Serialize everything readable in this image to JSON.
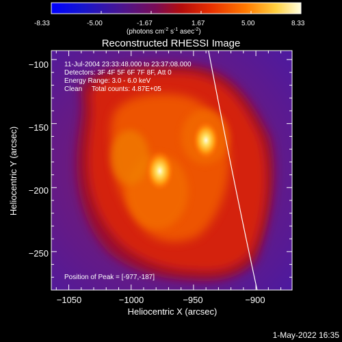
{
  "chart_data": {
    "type": "heatmap",
    "title": "Reconstructed RHESSI Image",
    "colorbar": {
      "ticks": [
        "-8.33",
        "-5.00",
        "-1.67",
        "1.67",
        "5.00",
        "8.33"
      ],
      "label_main": "(photons cm",
      "label_exp1": "-2",
      "label_mid": " s",
      "label_exp2": "-1",
      "label_end": " asec",
      "label_exp3": "-2",
      "label_close": ")"
    },
    "xlabel": "Heliocentric X (arcsec)",
    "ylabel": "Heliocentric Y (arcsec)",
    "xticks": [
      "−1050",
      "−1000",
      "−950",
      "−900"
    ],
    "yticks": [
      "−100",
      "−150",
      "−200",
      "−250"
    ],
    "xlim": [
      -1064,
      -871
    ],
    "ylim": [
      -280,
      -93
    ],
    "annotations": {
      "time": "11-Jul-2004 23:33:48.000 to 23:37:08.000",
      "detectors": "Detectors: 3F 4F 5F 6F 7F 8F, Att 0",
      "energy": "Energy Range: 3.0 - 6.0 keV",
      "clean": "Clean     Total counts: 4.87E+05",
      "peak": "Position of Peak = [-977,-187]"
    },
    "sources": [
      {
        "x": -977,
        "y": -187,
        "peak": 1.0
      },
      {
        "x": -940,
        "y": -163,
        "peak": 0.95
      }
    ],
    "limb_curve": [
      [
        -938,
        -93
      ],
      [
        -918,
        -195
      ],
      [
        -899,
        -280
      ]
    ],
    "footer": "1-May-2022 16:35"
  },
  "colors": {
    "background": "#000000",
    "outer_purple": "#5a1fa0",
    "emission_red": "#d42208",
    "emission_orange": "#f26a00",
    "core_yellow": "#ffe070",
    "core_white": "#fffce0"
  }
}
